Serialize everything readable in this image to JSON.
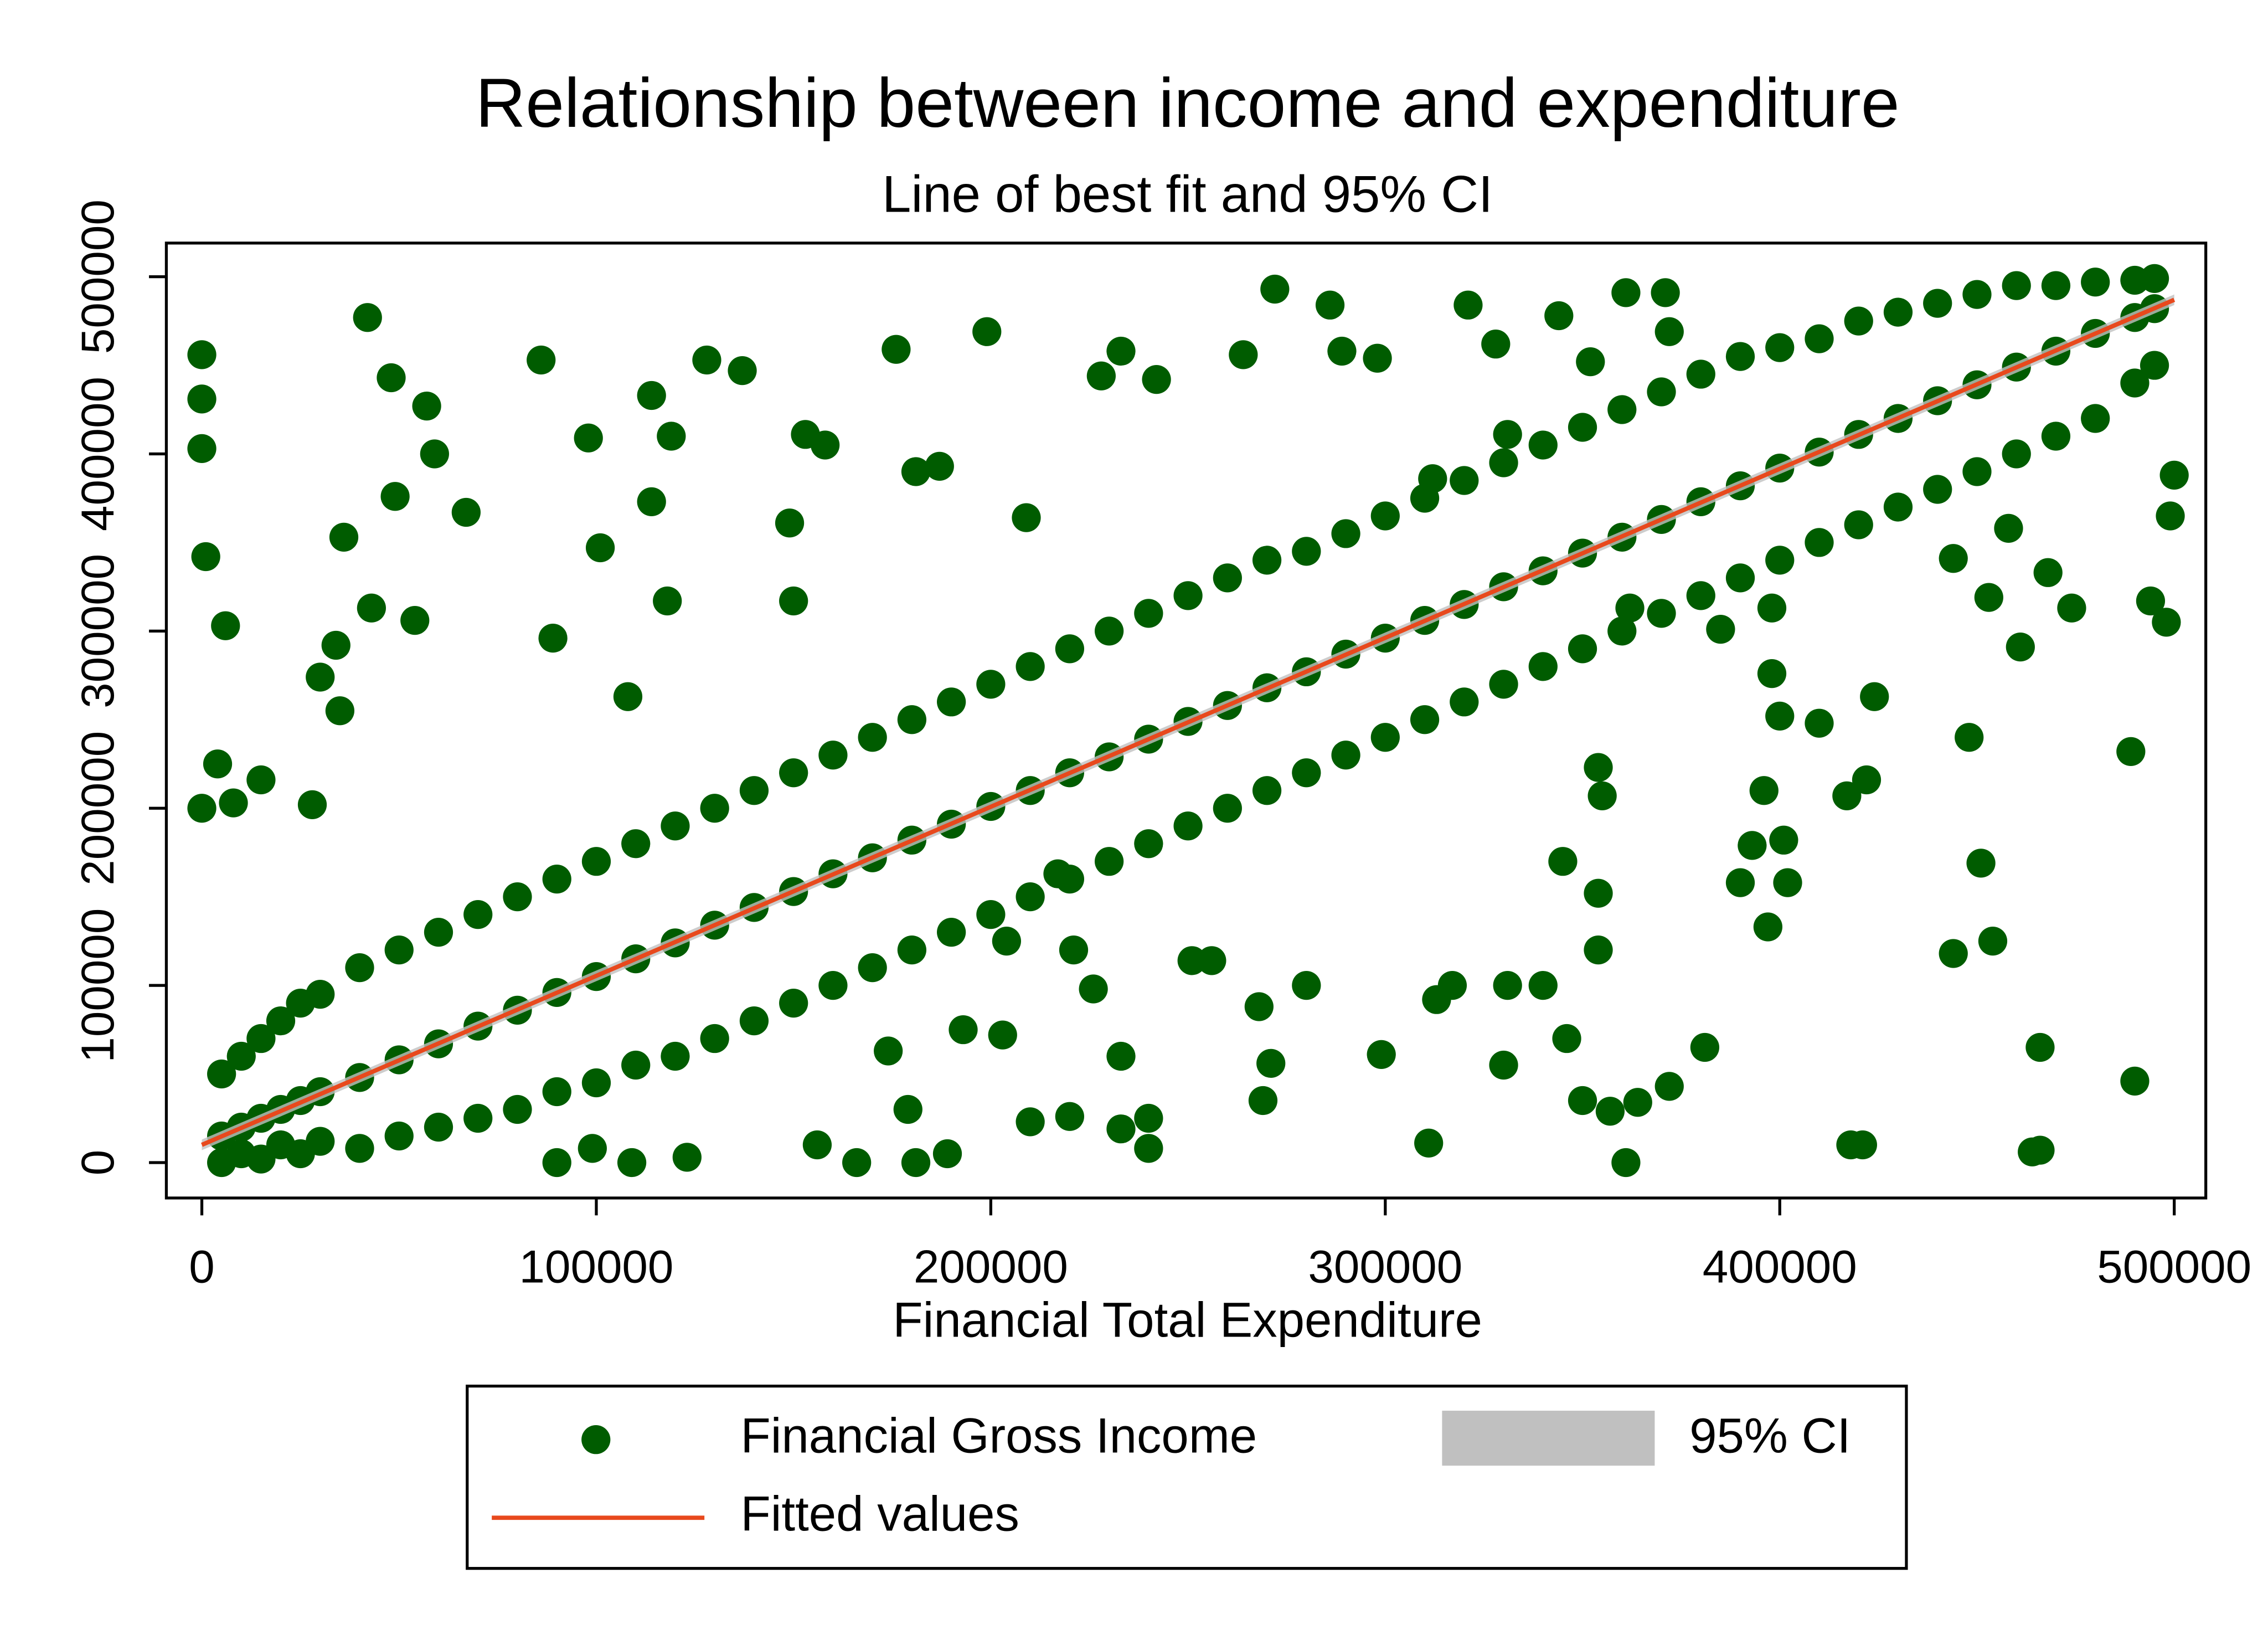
{
  "chart_data": {
    "type": "scatter",
    "title": "Relationship between income and expenditure",
    "subtitle": "Line of best fit and 95% CI",
    "x_label": "Financial Total Expenditure",
    "xlim": [
      -9000,
      508000
    ],
    "ylim": [
      -20000,
      519000
    ],
    "xticks": [
      0,
      100000,
      200000,
      300000,
      400000,
      500000
    ],
    "yticks": [
      0,
      100000,
      200000,
      300000,
      400000,
      500000
    ],
    "grid": false,
    "legend": "bottom",
    "series": [
      {
        "name": "Financial Gross Income",
        "type": "scatter",
        "color": "#005c00",
        "x": [
          5000,
          5000,
          5000,
          10000,
          10000,
          10000,
          15000,
          15000,
          15000,
          20000,
          20000,
          20000,
          25000,
          25000,
          25000,
          30000,
          30000,
          30000,
          40000,
          40000,
          40000,
          50000,
          50000,
          50000,
          60000,
          60000,
          60000,
          70000,
          70000,
          70000,
          80000,
          80000,
          80000,
          90000,
          90000,
          90000,
          100000,
          100000,
          100000,
          110000,
          110000,
          110000,
          120000,
          120000,
          120000,
          130000,
          130000,
          130000,
          140000,
          140000,
          140000,
          150000,
          150000,
          150000,
          160000,
          160000,
          160000,
          170000,
          170000,
          170000,
          180000,
          180000,
          180000,
          190000,
          190000,
          190000,
          200000,
          200000,
          200000,
          210000,
          210000,
          210000,
          220000,
          220000,
          220000,
          230000,
          230000,
          230000,
          240000,
          240000,
          240000,
          250000,
          250000,
          250000,
          260000,
          260000,
          260000,
          270000,
          270000,
          270000,
          280000,
          280000,
          280000,
          290000,
          290000,
          290000,
          300000,
          300000,
          300000,
          310000,
          310000,
          310000,
          320000,
          320000,
          320000,
          330000,
          330000,
          330000,
          340000,
          340000,
          340000,
          350000,
          350000,
          350000,
          360000,
          360000,
          360000,
          370000,
          370000,
          370000,
          380000,
          380000,
          380000,
          390000,
          390000,
          390000,
          400000,
          400000,
          400000,
          410000,
          410000,
          410000,
          420000,
          420000,
          420000,
          430000,
          430000,
          430000,
          440000,
          440000,
          440000,
          450000,
          450000,
          450000,
          460000,
          460000,
          460000,
          470000,
          470000,
          470000,
          480000,
          480000,
          480000,
          490000,
          490000,
          490000,
          495000,
          495000,
          495000,
          0,
          0,
          0,
          1000,
          6000,
          42000,
          48000,
          57000,
          59000,
          67000,
          49000,
          36000,
          30000,
          34000,
          35000,
          54000,
          43000,
          86000,
          98000,
          89000,
          101000,
          114000,
          128000,
          137000,
          119000,
          114000,
          118000,
          108000,
          153000,
          158000,
          149000,
          176000,
          199000,
          181000,
          187000,
          150000,
          209000,
          228000,
          233000,
          242000,
          264000,
          272000,
          286000,
          289000,
          298000,
          321000,
          328000,
          344000,
          361000,
          371000,
          352000,
          372000,
          331000,
          312000,
          398000,
          400000,
          410000,
          424000,
          448000,
          489000,
          396000,
          417000,
          422000,
          401000,
          393000,
          402000,
          390000,
          451000,
          354000,
          345000,
          354000,
          355000,
          397000,
          454000,
          444000,
          354000,
          331000,
          340000,
          317000,
          313000,
          299000,
          330000,
          346000,
          381000,
          372000,
          364000,
          350000,
          357000,
          361000,
          311000,
          466000,
          490000,
          418000,
          421000,
          464000,
          466000,
          498000,
          499000,
          500000,
          494000,
          474000,
          468000,
          444000,
          458000,
          461000,
          453000,
          398000,
          385000,
          362000,
          221000,
          226000,
          233000,
          233000,
          240000,
          240000,
          220000,
          210000,
          203000,
          193000,
          179000,
          166000,
          181000,
          189000,
          174000,
          156000,
          123000,
          109000,
          99000,
          90000,
          271000,
          269000,
          268000,
          280000,
          251000,
          256000,
          217000,
          204000,
          28000,
          4000,
          0,
          8000,
          15000
        ],
        "values": [
          50000,
          15000,
          0,
          60000,
          20000,
          5000,
          70000,
          25000,
          2000,
          80000,
          30000,
          10000,
          90000,
          35000,
          5000,
          95000,
          40000,
          12000,
          110000,
          48000,
          8000,
          120000,
          58000,
          15000,
          130000,
          67000,
          20000,
          140000,
          77000,
          25000,
          150000,
          86000,
          30000,
          160000,
          96000,
          40000,
          170000,
          105000,
          45000,
          180000,
          115000,
          55000,
          190000,
          124000,
          60000,
          200000,
          134000,
          70000,
          210000,
          144000,
          80000,
          220000,
          153000,
          90000,
          230000,
          163000,
          100000,
          240000,
          172000,
          110000,
          250000,
          182000,
          120000,
          260000,
          191000,
          130000,
          270000,
          201000,
          140000,
          280000,
          210000,
          150000,
          290000,
          220000,
          160000,
          300000,
          229000,
          170000,
          310000,
          239000,
          180000,
          320000,
          249000,
          190000,
          330000,
          258000,
          200000,
          340000,
          268000,
          210000,
          345000,
          277000,
          220000,
          355000,
          287000,
          230000,
          365000,
          296000,
          240000,
          375000,
          306000,
          250000,
          385000,
          315000,
          260000,
          395000,
          325000,
          270000,
          405000,
          334000,
          280000,
          415000,
          344000,
          290000,
          425000,
          353000,
          300000,
          435000,
          363000,
          310000,
          445000,
          373000,
          320000,
          455000,
          382000,
          330000,
          460000,
          392000,
          340000,
          465000,
          401000,
          350000,
          475000,
          411000,
          360000,
          480000,
          420000,
          370000,
          485000,
          430000,
          380000,
          490000,
          439000,
          390000,
          495000,
          449000,
          400000,
          495000,
          458000,
          410000,
          497000,
          468000,
          420000,
          498000,
          477000,
          440000,
          499000,
          482000,
          450000,
          456000,
          431000,
          403000,
          342000,
          303000,
          477000,
          443000,
          427000,
          400000,
          367000,
          376000,
          353000,
          274000,
          292000,
          255000,
          306000,
          313000,
          453000,
          409000,
          296000,
          347000,
          433000,
          453000,
          447000,
          410000,
          373000,
          317000,
          263000,
          411000,
          405000,
          361000,
          459000,
          469000,
          390000,
          393000,
          317000,
          364000,
          444000,
          458000,
          442000,
          456000,
          493000,
          484000,
          458000,
          454000,
          484000,
          462000,
          478000,
          491000,
          491000,
          452000,
          469000,
          411000,
          386000,
          276000,
          252000,
          248000,
          263000,
          240000,
          232000,
          210000,
          207000,
          216000,
          182000,
          179000,
          158000,
          158000,
          169000,
          152000,
          170000,
          223000,
          207000,
          133000,
          125000,
          118000,
          120000,
          100000,
          100000,
          100000,
          92000,
          61000,
          55000,
          70000,
          65000,
          43000,
          34000,
          35000,
          29000,
          0,
          11000,
          65000,
          46000,
          10000,
          10000,
          6000,
          7000,
          305000,
          365000,
          388000,
          317000,
          313000,
          333000,
          341000,
          358000,
          291000,
          319000,
          313000,
          301000,
          313000,
          120000,
          98000,
          60000,
          19000,
          8000,
          25000,
          26000,
          23000,
          72000,
          75000,
          30000,
          0,
          0,
          5000,
          63000,
          10000,
          3000,
          0,
          8000,
          0,
          56000,
          35000,
          88000,
          100000,
          114000,
          114000,
          163000,
          125000,
          202000,
          225000,
          200000,
          203000,
          216000
        ]
      },
      {
        "name": "95% CI",
        "type": "area",
        "color": "#c0c0c0",
        "x": [
          0,
          500000
        ],
        "lower": [
          7000,
          484000
        ],
        "upper": [
          13000,
          490000
        ]
      },
      {
        "name": "Fitted values",
        "type": "line",
        "color": "#e8491d",
        "x": [
          0,
          500000
        ],
        "values": [
          10000,
          487000
        ]
      }
    ]
  }
}
